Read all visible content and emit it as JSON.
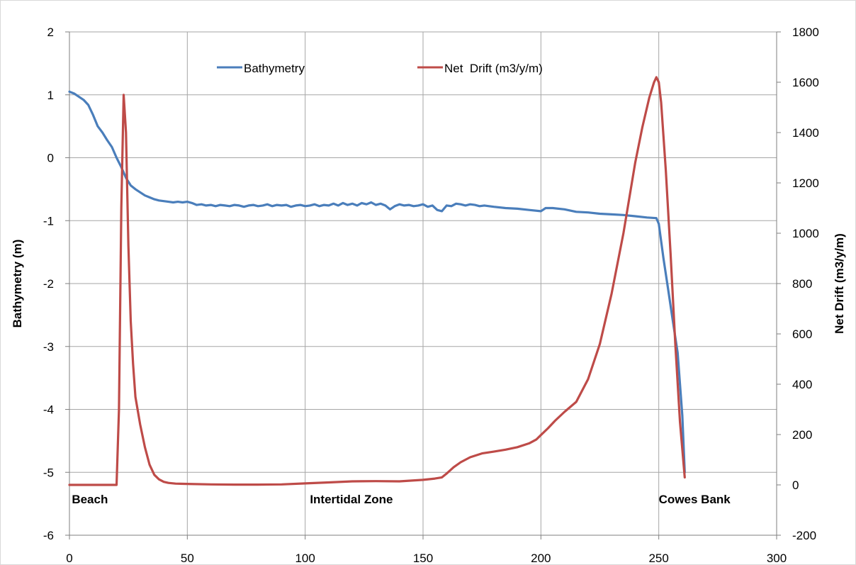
{
  "chart_data": {
    "type": "line",
    "title": "",
    "xlabel": "",
    "ylabel": "Bathymetry (m)",
    "y2label": "Net Drift (m3/y/m)",
    "xlim": [
      0,
      300
    ],
    "ylim": [
      -6,
      2
    ],
    "y2lim": [
      -200,
      1800
    ],
    "xticks": [
      "0",
      "50",
      "100",
      "150",
      "200",
      "250",
      "300"
    ],
    "yticks": [
      "2",
      "1",
      "0",
      "-1",
      "-2",
      "-3",
      "-4",
      "-5",
      "-6"
    ],
    "y2ticks": [
      "1800",
      "1600",
      "1400",
      "1200",
      "1000",
      "800",
      "600",
      "400",
      "200",
      "0",
      "-200"
    ],
    "grid": true,
    "legend_position": "top",
    "annotations": [
      {
        "text": "Beach",
        "x": 1
      },
      {
        "text": "Intertidal Zone",
        "x": 102
      },
      {
        "text": "Cowes Bank",
        "x": 250
      }
    ],
    "series": [
      {
        "name": "Bathymetry",
        "axis": "left",
        "color": "#4a7ebb",
        "x": [
          0,
          2,
          4,
          6,
          8,
          10,
          12,
          14,
          16,
          18,
          20,
          22,
          24,
          26,
          28,
          30,
          32,
          34,
          36,
          38,
          40,
          42,
          44,
          46,
          48,
          50,
          52,
          54,
          56,
          58,
          60,
          62,
          64,
          66,
          68,
          70,
          72,
          74,
          76,
          78,
          80,
          82,
          84,
          86,
          88,
          90,
          92,
          94,
          96,
          98,
          100,
          102,
          104,
          106,
          108,
          110,
          112,
          114,
          116,
          118,
          120,
          122,
          124,
          126,
          128,
          130,
          132,
          134,
          136,
          138,
          140,
          142,
          144,
          146,
          148,
          150,
          152,
          154,
          156,
          158,
          160,
          162,
          164,
          166,
          168,
          170,
          172,
          174,
          176,
          180,
          185,
          190,
          195,
          200,
          202,
          205,
          210,
          215,
          220,
          225,
          230,
          235,
          240,
          245,
          249,
          250,
          252,
          254,
          256,
          258,
          260,
          261
        ],
        "values": [
          1.05,
          1.02,
          0.97,
          0.92,
          0.84,
          0.68,
          0.5,
          0.4,
          0.28,
          0.17,
          0.0,
          -0.15,
          -0.32,
          -0.44,
          -0.5,
          -0.55,
          -0.6,
          -0.63,
          -0.66,
          -0.68,
          -0.69,
          -0.7,
          -0.71,
          -0.7,
          -0.71,
          -0.7,
          -0.72,
          -0.75,
          -0.74,
          -0.76,
          -0.75,
          -0.77,
          -0.75,
          -0.76,
          -0.77,
          -0.75,
          -0.76,
          -0.78,
          -0.76,
          -0.75,
          -0.77,
          -0.76,
          -0.74,
          -0.77,
          -0.75,
          -0.76,
          -0.75,
          -0.78,
          -0.76,
          -0.75,
          -0.77,
          -0.76,
          -0.74,
          -0.77,
          -0.75,
          -0.76,
          -0.73,
          -0.76,
          -0.72,
          -0.75,
          -0.73,
          -0.76,
          -0.72,
          -0.74,
          -0.71,
          -0.75,
          -0.73,
          -0.76,
          -0.82,
          -0.77,
          -0.74,
          -0.76,
          -0.75,
          -0.77,
          -0.76,
          -0.74,
          -0.78,
          -0.76,
          -0.83,
          -0.85,
          -0.76,
          -0.77,
          -0.73,
          -0.74,
          -0.76,
          -0.74,
          -0.75,
          -0.77,
          -0.76,
          -0.78,
          -0.8,
          -0.81,
          -0.83,
          -0.85,
          -0.8,
          -0.8,
          -0.82,
          -0.86,
          -0.87,
          -0.89,
          -0.9,
          -0.91,
          -0.93,
          -0.95,
          -0.96,
          -1.05,
          -1.6,
          -2.1,
          -2.6,
          -3.1,
          -4.1,
          -5.0
        ]
      },
      {
        "name": "Net  Drift (m3/y/m)",
        "axis": "right",
        "color": "#be4b48",
        "x": [
          0,
          5,
          10,
          15,
          20,
          21,
          22,
          23,
          24,
          25,
          26,
          27,
          28,
          30,
          32,
          34,
          36,
          38,
          40,
          42,
          45,
          50,
          60,
          70,
          80,
          90,
          100,
          110,
          120,
          130,
          140,
          150,
          155,
          158,
          160,
          163,
          166,
          170,
          175,
          180,
          185,
          190,
          195,
          198,
          200,
          203,
          206,
          210,
          215,
          220,
          225,
          230,
          235,
          240,
          243,
          246,
          248,
          249,
          250,
          251,
          253,
          255,
          257,
          259,
          261
        ],
        "values": [
          0,
          0,
          0,
          0,
          0,
          300,
          1100,
          1550,
          1400,
          950,
          650,
          480,
          350,
          240,
          150,
          80,
          40,
          22,
          12,
          8,
          5,
          4,
          2,
          1,
          1,
          2,
          6,
          10,
          14,
          15,
          14,
          20,
          25,
          30,
          45,
          70,
          90,
          110,
          125,
          132,
          140,
          150,
          165,
          180,
          198,
          225,
          255,
          290,
          330,
          420,
          560,
          760,
          1000,
          1280,
          1420,
          1540,
          1600,
          1620,
          1600,
          1520,
          1250,
          920,
          560,
          250,
          30
        ]
      }
    ]
  }
}
